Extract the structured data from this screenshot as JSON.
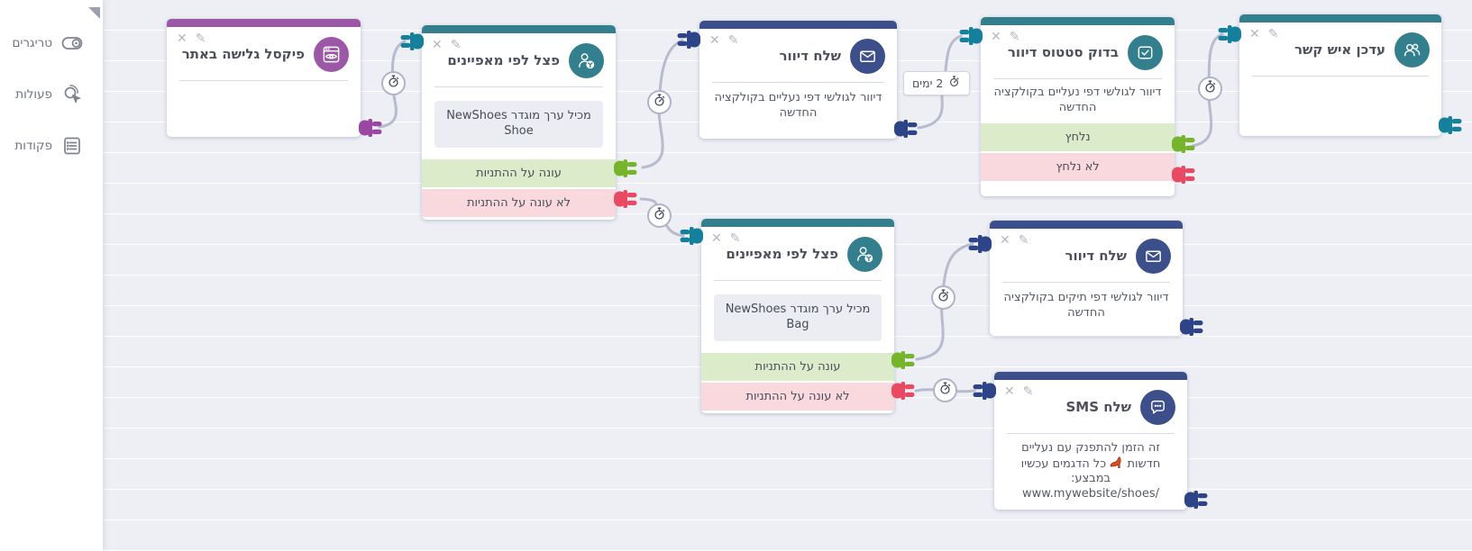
{
  "sidebar": {
    "items": [
      {
        "label": "טריגרים",
        "icon": "toggle-icon"
      },
      {
        "label": "פעולות",
        "icon": "click-action-icon"
      },
      {
        "label": "פקודות",
        "icon": "commands-list-icon"
      }
    ]
  },
  "icons": {
    "close": "✕",
    "edit": "✎"
  },
  "delay_badge": {
    "label": "2 ימים",
    "icon": "stopwatch-icon"
  },
  "nodes": {
    "pixel_trigger": {
      "title": "פיקסל גלישה באתר",
      "icon": "browse-pixel-icon",
      "color": "#9c58a6"
    },
    "split_shoes": {
      "title": "פצל לפי מאפיינים",
      "icon": "split-contact-icon",
      "color": "#337f8e",
      "condition": "מכיל ערך מוגדר NewShoes Shoe",
      "yes_label": "עונה על ההתניות",
      "no_label": "לא עונה על ההתניות"
    },
    "send_mail_shoes": {
      "title": "שלח דיוור",
      "icon": "envelope-icon",
      "color": "#3d4f8b",
      "body": "דיוור לגולשי דפי נעליים בקולקציה החדשה"
    },
    "check_status": {
      "title": "בדוק סטטוס דיוור",
      "icon": "checkbox-icon",
      "color": "#337f8e",
      "body": "דיוור לגולשי דפי נעליים בקולקציה החדשה",
      "yes_label": "נלחץ",
      "no_label": "לא נלחץ"
    },
    "update_contact": {
      "title": "עדכן איש קשר",
      "icon": "contacts-icon",
      "color": "#337f8e"
    },
    "split_bags": {
      "title": "פצל לפי מאפיינים",
      "icon": "split-contact-icon",
      "color": "#337f8e",
      "condition": "מכיל ערך מוגדר NewShoes Bag",
      "yes_label": "עונה על ההתניות",
      "no_label": "לא עונה על ההתניות"
    },
    "send_mail_bags": {
      "title": "שלח דיוור",
      "icon": "envelope-icon",
      "color": "#3d4f8b",
      "body": "דיוור לגולשי דפי תיקים בקולקציה החדשה"
    },
    "send_sms": {
      "title": "שלח SMS",
      "icon": "sms-bubble-icon",
      "color": "#3d4f8b",
      "body_before_emoji": "זה הזמן להתפנק עם נעליים חדשות",
      "emoji": "👠",
      "body_after_emoji": "כל הדגמים עכשיו במבצע: /www.mywebsite/shoes"
    }
  },
  "colors": {
    "purple": "#9c58a6",
    "teal": "#337f8e",
    "navy": "#3d4f8b",
    "plug_green": "#76b42c",
    "plug_red": "#e84a64",
    "yes_row_bg": "#dcecca",
    "no_row_bg": "#f9d9de",
    "wire": "#b7bbce"
  }
}
